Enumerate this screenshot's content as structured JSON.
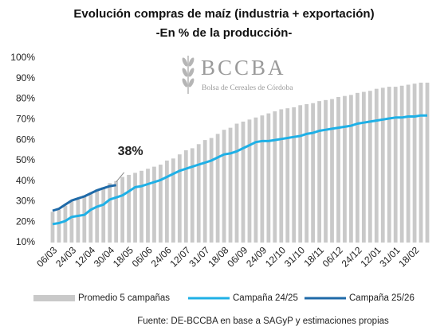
{
  "chart_data": {
    "type": "bar_line",
    "title": "Evolución compras de maíz (industria + exportación)",
    "subtitle": "-En % de la producción-",
    "logo": {
      "name": "BCCBA",
      "tagline": "Bolsa de Cereales de Córdoba"
    },
    "source": "Fuente: DE-BCCBA en base a SAGyP y estimaciones propias",
    "categories": [
      "06/03",
      null,
      null,
      "24/03",
      null,
      null,
      "12/04",
      null,
      null,
      "30/04",
      null,
      null,
      "18/05",
      null,
      null,
      "06/06",
      null,
      null,
      "24/06",
      null,
      null,
      "12/07",
      null,
      null,
      "31/07",
      null,
      null,
      "18/08",
      null,
      null,
      "06/09",
      null,
      null,
      "24/09",
      null,
      null,
      "12/10",
      null,
      null,
      "31/10",
      null,
      null,
      "18/11",
      null,
      null,
      "06/12",
      null,
      null,
      "24/12",
      null,
      null,
      "12/01",
      null,
      null,
      "31/01",
      null,
      null,
      "18/02",
      null,
      null
    ],
    "series": [
      {
        "name": "Promedio 5 campañas",
        "type": "bar",
        "color": "#c9c9c9",
        "values": [
          25,
          26,
          28,
          30,
          31,
          33,
          34,
          36,
          37,
          39,
          40,
          42,
          43,
          44,
          45,
          46,
          47,
          48,
          50,
          51,
          53,
          55,
          56,
          58,
          60,
          61,
          63,
          65,
          66,
          68,
          69,
          70,
          71,
          72,
          73,
          74,
          75,
          75.5,
          76,
          77,
          77.5,
          78,
          79,
          79.5,
          80,
          81,
          81.5,
          82,
          83,
          83.5,
          84,
          85,
          85.5,
          86,
          86,
          86.5,
          87,
          87.5,
          88,
          88
        ]
      },
      {
        "name": "Campaña 24/25",
        "type": "line",
        "color": "#1fb0e6",
        "values": [
          19,
          19.5,
          20.5,
          22.5,
          23,
          23.5,
          26,
          27.5,
          28.5,
          31,
          32,
          33,
          35,
          37,
          37.5,
          38.5,
          39.5,
          40.5,
          42,
          43.5,
          45,
          46,
          47,
          48,
          49,
          50,
          51.5,
          53,
          53.5,
          54.5,
          56,
          57.5,
          59,
          59.5,
          59.5,
          60,
          60.5,
          61,
          61.5,
          62,
          63,
          63.5,
          64.5,
          65,
          65.5,
          66,
          66.5,
          67,
          68,
          68.5,
          69,
          69.5,
          70,
          70.5,
          71,
          71,
          71.5,
          71.5,
          72,
          72
        ]
      },
      {
        "name": "Campaña 25/26",
        "type": "line",
        "color": "#1f6aa8",
        "values": [
          25.5,
          26.5,
          28.5,
          30.5,
          31.5,
          32.5,
          34,
          35.5,
          36.5,
          37.5,
          38,
          null,
          null,
          null,
          null,
          null,
          null,
          null,
          null,
          null,
          null,
          null,
          null,
          null,
          null,
          null,
          null,
          null,
          null,
          null,
          null,
          null,
          null,
          null,
          null,
          null,
          null,
          null,
          null,
          null,
          null,
          null,
          null,
          null,
          null,
          null,
          null,
          null,
          null,
          null,
          null,
          null,
          null,
          null,
          null,
          null,
          null,
          null,
          null,
          null
        ]
      }
    ],
    "annotation": {
      "text": "38%",
      "series": 2,
      "index": 10
    },
    "ylim": [
      10,
      100
    ],
    "yticks": [
      {
        "value": 10,
        "label": "10%"
      },
      {
        "value": 20,
        "label": "20%"
      },
      {
        "value": 30,
        "label": "30%"
      },
      {
        "value": 40,
        "label": "40%"
      },
      {
        "value": 50,
        "label": "50%"
      },
      {
        "value": 60,
        "label": "60%"
      },
      {
        "value": 70,
        "label": "70%"
      },
      {
        "value": 80,
        "label": "80%"
      },
      {
        "value": 90,
        "label": "90%"
      },
      {
        "value": 100,
        "label": "100%"
      }
    ],
    "grid": false,
    "legend": "bottom"
  }
}
